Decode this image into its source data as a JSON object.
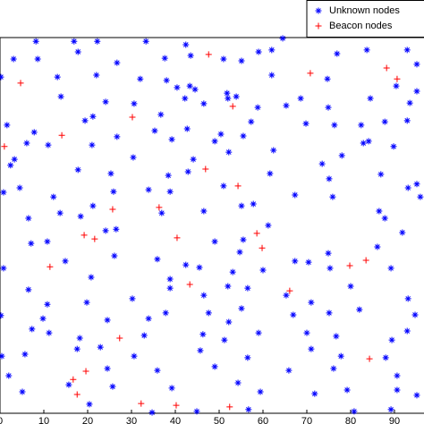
{
  "chart_data": {
    "type": "scatter",
    "xlim": [
      0,
      100
    ],
    "ylim": [
      0,
      100
    ],
    "xticks": [
      0,
      10,
      20,
      30,
      40,
      50,
      60,
      70,
      80,
      90
    ],
    "grid": false,
    "legend": "upper right",
    "series": [
      {
        "name": "Unknown nodes",
        "color": "#0000ff",
        "marker": "*",
        "x": [
          8.2,
          16.9,
          22.2,
          33.3,
          42.4,
          64.5,
          3.1,
          8.6,
          17.8,
          26.7,
          37.6,
          43.5,
          51.0,
          55.1,
          59.0,
          62.0,
          76.9,
          83.7,
          92.9,
          95.1,
          0.2,
          13.1,
          22.0,
          32.0,
          38.0,
          40.4,
          43.3,
          44.5,
          51.8,
          53.9,
          62.0,
          74.7,
          90.4,
          95.1,
          13.9,
          21.2,
          24.1,
          30.6,
          36.7,
          42.2,
          46.5,
          52.0,
          58.8,
          65.3,
          68.6,
          74.9,
          84.5,
          93.5,
          1.6,
          7.8,
          19.4,
          26.7,
          35.3,
          42.7,
          57.3,
          69.8,
          76.3,
          82.4,
          84.1,
          87.8,
          92.9,
          2.4,
          6.1,
          11.0,
          21.0,
          39.2,
          44.1,
          50.4,
          55.5,
          62.4,
          73.5,
          78.0,
          82.9,
          89.8,
          3.3,
          17.8,
          25.3,
          30.4,
          38.4,
          42.9,
          49.0,
          52.2,
          61.6,
          75.1,
          86.9,
          0.8,
          4.5,
          12.2,
          21.2,
          25.9,
          33.9,
          38.8,
          51.0,
          57.8,
          67.3,
          75.9,
          93.1,
          95.1,
          95.9,
          6.5,
          13.7,
          18.4,
          24.1,
          26.5,
          36.9,
          46.5,
          55.1,
          61.2,
          86.5,
          87.8,
          91.8,
          7.1,
          10.8,
          26.1,
          35.9,
          42.4,
          49.0,
          55.5,
          54.7,
          67.3,
          70.4,
          74.9,
          86.1,
          0.8,
          14.9,
          20.8,
          38.8,
          45.5,
          53.1,
          56.5,
          60.0,
          75.3,
          80.0,
          89.2,
          6.5,
          10.8,
          19.8,
          30.2,
          38.8,
          46.5,
          52.0,
          55.1,
          65.3,
          71.0,
          82.0,
          93.1,
          0.2,
          9.8,
          24.5,
          33.9,
          37.8,
          47.6,
          52.2,
          66.9,
          75.1,
          94.7,
          7.3,
          11.2,
          18.2,
          32.9,
          46.3,
          51.2,
          59.0,
          70.0,
          76.7,
          89.4,
          92.9,
          0.4,
          5.7,
          17.6,
          22.9,
          30.6,
          45.7,
          56.5,
          71.0,
          77.8,
          88.0,
          2.0,
          24.5,
          35.9,
          49.0,
          65.9,
          76.1,
          90.6,
          5.1,
          15.7,
          25.7,
          39.2,
          54.3,
          59.4,
          71.8,
          79.2,
          90.6,
          95.1,
          20.4,
          34.7,
          44.9,
          56.7,
          80.8,
          89.2
        ],
        "y": [
          99.0,
          99.0,
          99.0,
          99.0,
          98.1,
          99.8,
          94.3,
          94.3,
          96.2,
          93.3,
          94.5,
          95.2,
          94.3,
          93.8,
          96.2,
          96.7,
          95.7,
          96.7,
          96.7,
          92.9,
          89.5,
          89.5,
          90.0,
          89.0,
          88.6,
          86.7,
          87.1,
          86.2,
          85.2,
          84.3,
          90.0,
          89.0,
          87.1,
          85.7,
          84.3,
          79.0,
          82.9,
          82.4,
          79.5,
          83.8,
          82.4,
          83.8,
          81.4,
          81.9,
          83.8,
          81.4,
          83.8,
          82.6,
          76.7,
          74.8,
          77.9,
          73.6,
          75.2,
          75.7,
          77.6,
          77.1,
          76.7,
          76.7,
          72.4,
          77.6,
          77.9,
          66.0,
          71.9,
          71.4,
          71.4,
          72.9,
          67.6,
          74.3,
          73.8,
          70.0,
          66.4,
          68.6,
          71.9,
          71.0,
          67.6,
          64.8,
          63.8,
          68.1,
          63.3,
          64.3,
          72.4,
          69.5,
          63.8,
          62.4,
          63.6,
          58.8,
          60.0,
          57.6,
          55.2,
          59.0,
          59.5,
          59.0,
          60.5,
          55.7,
          58.1,
          57.6,
          60.0,
          61.0,
          57.6,
          51.9,
          53.3,
          52.4,
          48.6,
          49.0,
          53.3,
          53.8,
          55.2,
          50.0,
          53.8,
          51.9,
          48.1,
          45.2,
          45.7,
          41.9,
          41.0,
          39.5,
          45.7,
          46.2,
          42.9,
          40.5,
          40.2,
          42.6,
          44.3,
          38.6,
          40.5,
          36.2,
          35.7,
          38.8,
          37.6,
          33.3,
          38.1,
          38.6,
          33.8,
          38.6,
          32.9,
          29.0,
          29.5,
          30.5,
          33.3,
          31.4,
          33.8,
          27.9,
          31.4,
          29.5,
          27.6,
          30.5,
          26.0,
          25.2,
          24.8,
          25.2,
          26.7,
          26.7,
          24.3,
          26.2,
          26.7,
          26.2,
          22.4,
          21.4,
          20.0,
          20.7,
          21.0,
          19.5,
          21.4,
          21.4,
          20.5,
          19.5,
          21.9,
          15.2,
          15.7,
          17.1,
          17.6,
          15.2,
          16.7,
          14.8,
          17.1,
          15.2,
          14.8,
          10.0,
          11.9,
          11.4,
          12.4,
          11.4,
          11.9,
          10.0,
          5.7,
          7.6,
          7.1,
          6.7,
          8.1,
          5.7,
          5.2,
          6.2,
          6.2,
          4.8,
          2.4,
          0.2,
          0.5,
          1.0,
          0.5,
          1.0
        ]
      },
      {
        "name": "Beacon nodes",
        "color": "#ff0000",
        "marker": "+",
        "x": [
          4.7,
          47.6,
          70.8,
          88.2,
          90.6,
          30.2,
          14.1,
          53.1,
          1.0,
          46.9,
          54.3,
          36.3,
          25.7,
          19.2,
          21.6,
          40.4,
          58.6,
          59.8,
          11.4,
          79.8,
          83.5,
          43.3,
          66.1,
          27.3,
          84.3,
          19.6,
          16.7,
          17.6,
          32.2,
          40.2,
          52.4
        ],
        "y": [
          87.9,
          95.5,
          90.5,
          91.9,
          89.0,
          78.8,
          74.0,
          81.7,
          71.0,
          65.0,
          60.5,
          54.8,
          54.3,
          47.4,
          46.4,
          46.7,
          47.9,
          44.0,
          39.0,
          39.3,
          40.7,
          34.3,
          32.6,
          20.0,
          14.5,
          11.2,
          9.0,
          5.0,
          2.6,
          2.1,
          1.7
        ]
      }
    ]
  }
}
